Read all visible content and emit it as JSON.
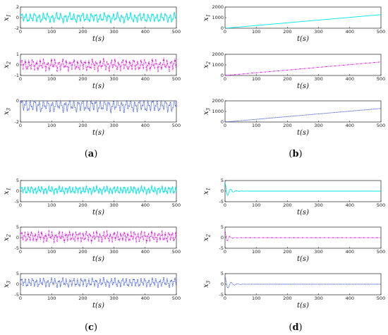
{
  "panels": [
    {
      "label_open": "(",
      "letter": "a",
      "label_close": ")"
    },
    {
      "label_open": "(",
      "letter": "b",
      "label_close": ")"
    },
    {
      "label_open": "(",
      "letter": "c",
      "label_close": ")"
    },
    {
      "label_open": "(",
      "letter": "d",
      "label_close": ")"
    }
  ],
  "chart_data": [
    {
      "type": "line",
      "panel": "a",
      "subplots": [
        {
          "ylabel": "x1",
          "xlabel": "t(s)",
          "xlim": [
            0,
            500
          ],
          "ylim": [
            -2,
            2
          ],
          "yticks": [
            "-2",
            "0",
            "2"
          ],
          "color": "#00e5e5",
          "style": "solid",
          "pattern": "oscillation",
          "center": 0,
          "amplitude": 0.9,
          "period": 14
        },
        {
          "ylabel": "x2",
          "xlabel": "t(s)",
          "xlim": [
            0,
            500
          ],
          "ylim": [
            -1,
            1
          ],
          "yticks": [
            "-1",
            "0",
            "1"
          ],
          "color": "#e600e6",
          "style": "dashdot",
          "pattern": "oscillation",
          "center": 0,
          "amplitude": 0.55,
          "period": 12
        },
        {
          "ylabel": "x3",
          "xlabel": "t(s)",
          "xlim": [
            0,
            500
          ],
          "ylim": [
            -2,
            0
          ],
          "yticks": [
            "-2",
            "0"
          ],
          "color": "#1f3fe0",
          "style": "dotted",
          "pattern": "oscillation",
          "center": -0.45,
          "amplitude": 0.6,
          "period": 14
        }
      ]
    },
    {
      "type": "line",
      "panel": "b",
      "subplots": [
        {
          "ylabel": "x1",
          "xlabel": "t(s)",
          "xlim": [
            0,
            500
          ],
          "ylim": [
            0,
            2000
          ],
          "yticks": [
            "0",
            "1000",
            "2000"
          ],
          "color": "#00e5e5",
          "style": "solid",
          "pattern": "linear",
          "start": 0,
          "end": 1280
        },
        {
          "ylabel": "x2",
          "xlabel": "t(s)",
          "xlim": [
            0,
            500
          ],
          "ylim": [
            0,
            2000
          ],
          "yticks": [
            "0",
            "1000",
            "2000"
          ],
          "color": "#e600e6",
          "style": "dashdot",
          "pattern": "linear",
          "start": 0,
          "end": 1280
        },
        {
          "ylabel": "x3",
          "xlabel": "t(s)",
          "xlim": [
            0,
            500
          ],
          "ylim": [
            0,
            2000
          ],
          "yticks": [
            "0",
            "1000",
            "2000"
          ],
          "color": "#1f3fe0",
          "style": "dotted",
          "pattern": "linear",
          "start": 0,
          "end": 1280
        }
      ]
    },
    {
      "type": "line",
      "panel": "c",
      "subplots": [
        {
          "ylabel": "x1",
          "xlabel": "t(s)",
          "xlim": [
            0,
            500
          ],
          "ylim": [
            -5,
            5
          ],
          "yticks": [
            "-5",
            "0",
            "5"
          ],
          "color": "#00e5e5",
          "style": "solid",
          "pattern": "oscillation",
          "center": 0.5,
          "amplitude": 1.8,
          "period": 11
        },
        {
          "ylabel": "x2",
          "xlabel": "t(s)",
          "xlim": [
            0,
            500
          ],
          "ylim": [
            -5,
            5
          ],
          "yticks": [
            "-5",
            "0",
            "5"
          ],
          "color": "#e600e6",
          "style": "dashdot",
          "pattern": "oscillation",
          "center": 0.5,
          "amplitude": 2.5,
          "period": 11
        },
        {
          "ylabel": "x3",
          "xlabel": "t(s)",
          "xlim": [
            0,
            500
          ],
          "ylim": [
            -5,
            5
          ],
          "yticks": [
            "-5",
            "0",
            "5"
          ],
          "color": "#1f3fe0",
          "style": "dotted",
          "pattern": "oscillation",
          "center": 0.8,
          "amplitude": 2.2,
          "period": 12
        }
      ]
    },
    {
      "type": "line",
      "panel": "d",
      "subplots": [
        {
          "ylabel": "x1",
          "xlabel": "t(s)",
          "xlim": [
            0,
            500
          ],
          "ylim": [
            -5,
            5
          ],
          "yticks": [
            "-5",
            "0",
            "5"
          ],
          "color": "#00e5e5",
          "style": "solid",
          "pattern": "decay",
          "initial": 4,
          "decay_time": 12,
          "period": 18
        },
        {
          "ylabel": "x2",
          "xlabel": "t(s)",
          "xlim": [
            0,
            500
          ],
          "ylim": [
            -5,
            5
          ],
          "yticks": [
            "-5",
            "0",
            "5"
          ],
          "color": "#e600e6",
          "style": "dashdot",
          "pattern": "decay",
          "initial": 3,
          "decay_time": 10,
          "period": 16
        },
        {
          "ylabel": "x3",
          "xlabel": "t(s)",
          "xlim": [
            0,
            500
          ],
          "ylim": [
            -5,
            5
          ],
          "yticks": [
            "-5",
            "0",
            "5"
          ],
          "color": "#1f3fe0",
          "style": "dotted",
          "pattern": "decay",
          "initial": 3.5,
          "decay_time": 14,
          "period": 20
        }
      ]
    }
  ],
  "xticks": [
    "0",
    "100",
    "200",
    "300",
    "400",
    "500"
  ]
}
